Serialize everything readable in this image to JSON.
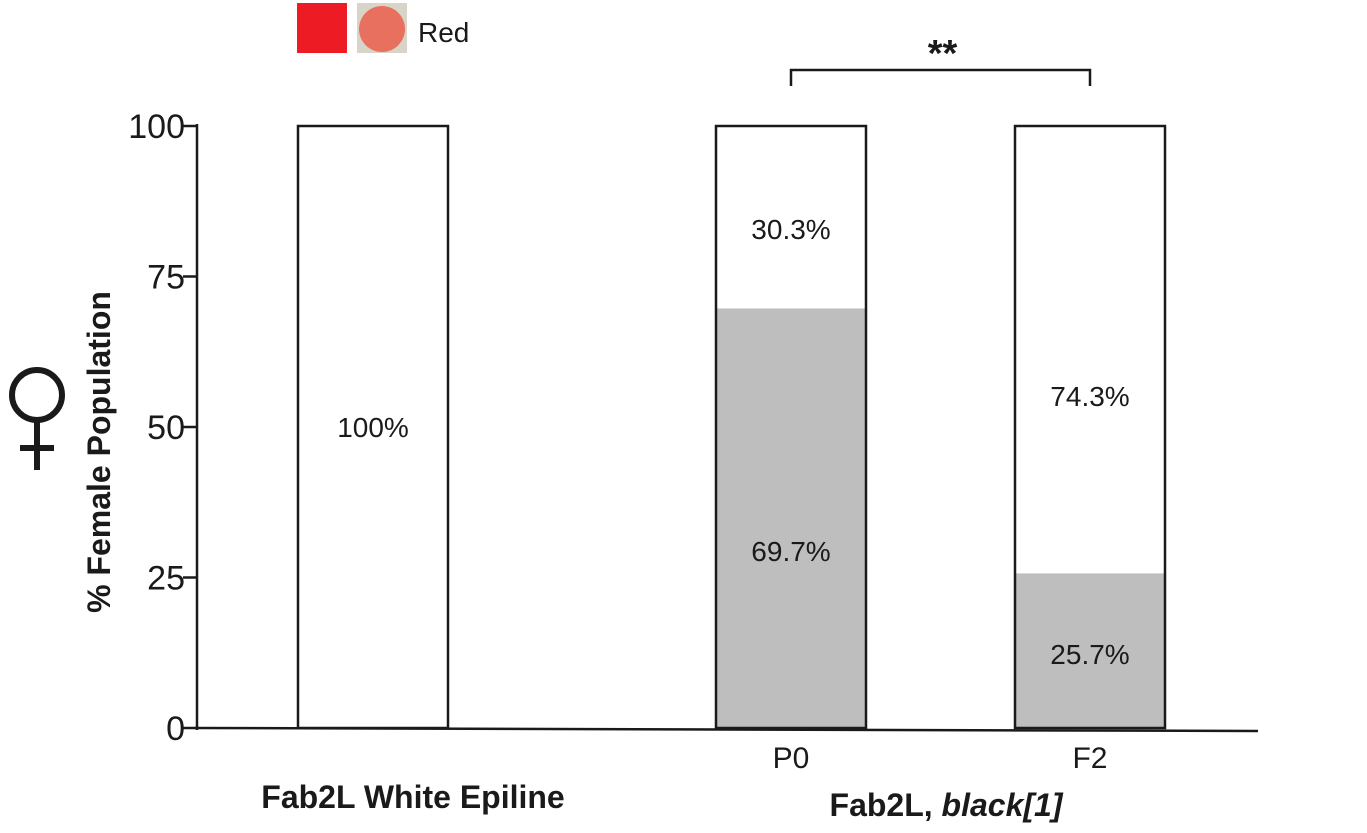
{
  "chart_data": {
    "type": "bar",
    "stacked": true,
    "ylabel": "% Female Population",
    "ylim": [
      0,
      100
    ],
    "yticks": [
      0,
      25,
      50,
      75,
      100
    ],
    "female_symbol": "♀",
    "bars": [
      {
        "category": "",
        "group": "Fab2L White Epiline",
        "segments": [
          {
            "series": "Red",
            "value": 0,
            "label": ""
          },
          {
            "series": "White",
            "value": 100,
            "label": "100%"
          }
        ]
      },
      {
        "category": "P0",
        "group": "Fab2L, black[1]",
        "segments": [
          {
            "series": "Red",
            "value": 69.7,
            "label": "69.7%"
          },
          {
            "series": "White",
            "value": 30.3,
            "label": "30.3%"
          }
        ]
      },
      {
        "category": "F2",
        "group": "Fab2L, black[1]",
        "segments": [
          {
            "series": "Red",
            "value": 25.7,
            "label": "25.7%"
          },
          {
            "series": "White",
            "value": 74.3,
            "label": "74.3%"
          }
        ]
      }
    ],
    "groups": [
      {
        "name": "Fab2L White Epiline",
        "prefix": "Fab2L White Epiline",
        "italic": ""
      },
      {
        "name": "Fab2L, black[1]",
        "prefix": "Fab2L, ",
        "italic": "black[1]"
      }
    ],
    "legend": [
      {
        "label": "Red",
        "swatch_color": "#ed1c24",
        "eye_color": "#e8705e"
      }
    ],
    "significance": {
      "between": [
        "P0",
        "F2"
      ],
      "label": "**"
    },
    "colors": {
      "red_segment": "#bebebe",
      "white_segment": "#ffffff",
      "stroke": "#1a1a1a"
    }
  }
}
